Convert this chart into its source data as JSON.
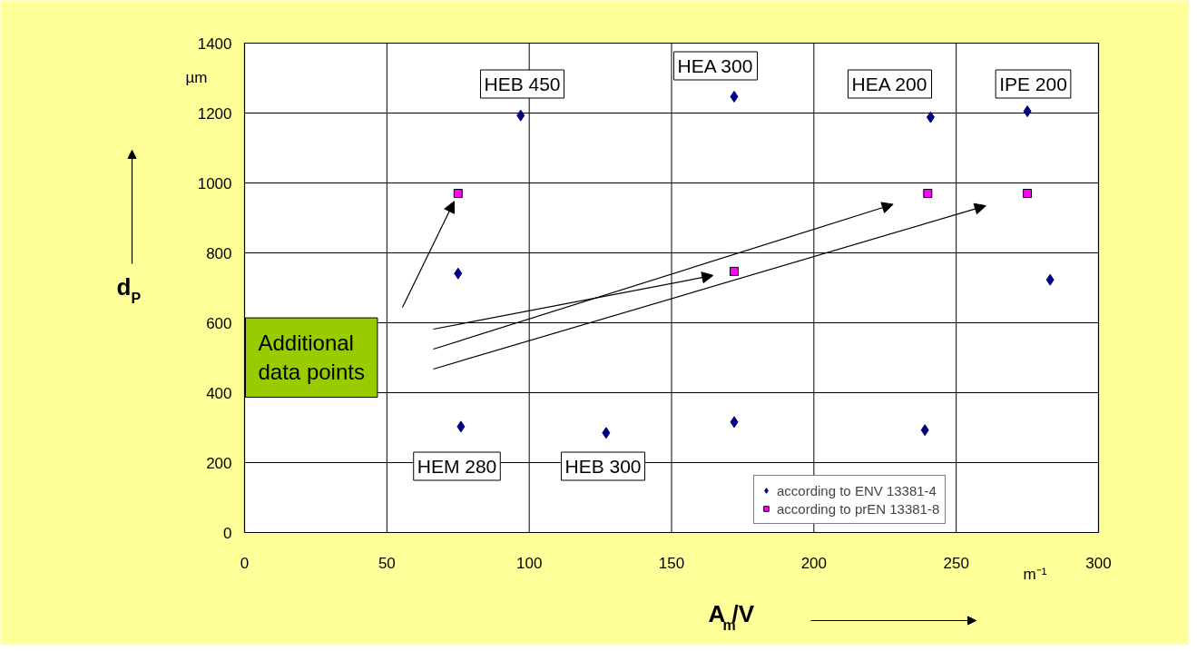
{
  "chart_data": {
    "type": "scatter",
    "ylabel": "d$_{P}$",
    "xlabel": "A$_{m}$/V",
    "xlim": [
      0,
      300
    ],
    "xticks": [
      0,
      50,
      100,
      150,
      200,
      250,
      300
    ],
    "ylim": [
      0,
      1400
    ],
    "yticks": [
      0,
      200,
      400,
      600,
      800,
      1000,
      1200,
      1400
    ],
    "grid": true,
    "legend": "bottom right",
    "series": [
      {
        "name": "according to ENV 13381-4",
        "color": "#000080",
        "marker": "diamond",
        "x": [
          76,
          75,
          97,
          127,
          172,
          172,
          239,
          241,
          275,
          283
        ],
        "values": [
          303,
          741,
          1193,
          285,
          316,
          1247,
          293,
          1188,
          1205,
          723
        ]
      },
      {
        "name": "according to prEN 13381-8",
        "color": "#ff00ff",
        "marker": "square",
        "x": [
          75,
          172,
          240,
          275
        ],
        "values": [
          970,
          747,
          970,
          970
        ]
      }
    ],
    "annotations": [
      "HEB 450",
      "HEA 300",
      "HEA 200",
      "IPE 200",
      "HEM 280",
      "HEB 300",
      "Additional\ndata points",
      "µm",
      "m⁻¹"
    ]
  }
}
